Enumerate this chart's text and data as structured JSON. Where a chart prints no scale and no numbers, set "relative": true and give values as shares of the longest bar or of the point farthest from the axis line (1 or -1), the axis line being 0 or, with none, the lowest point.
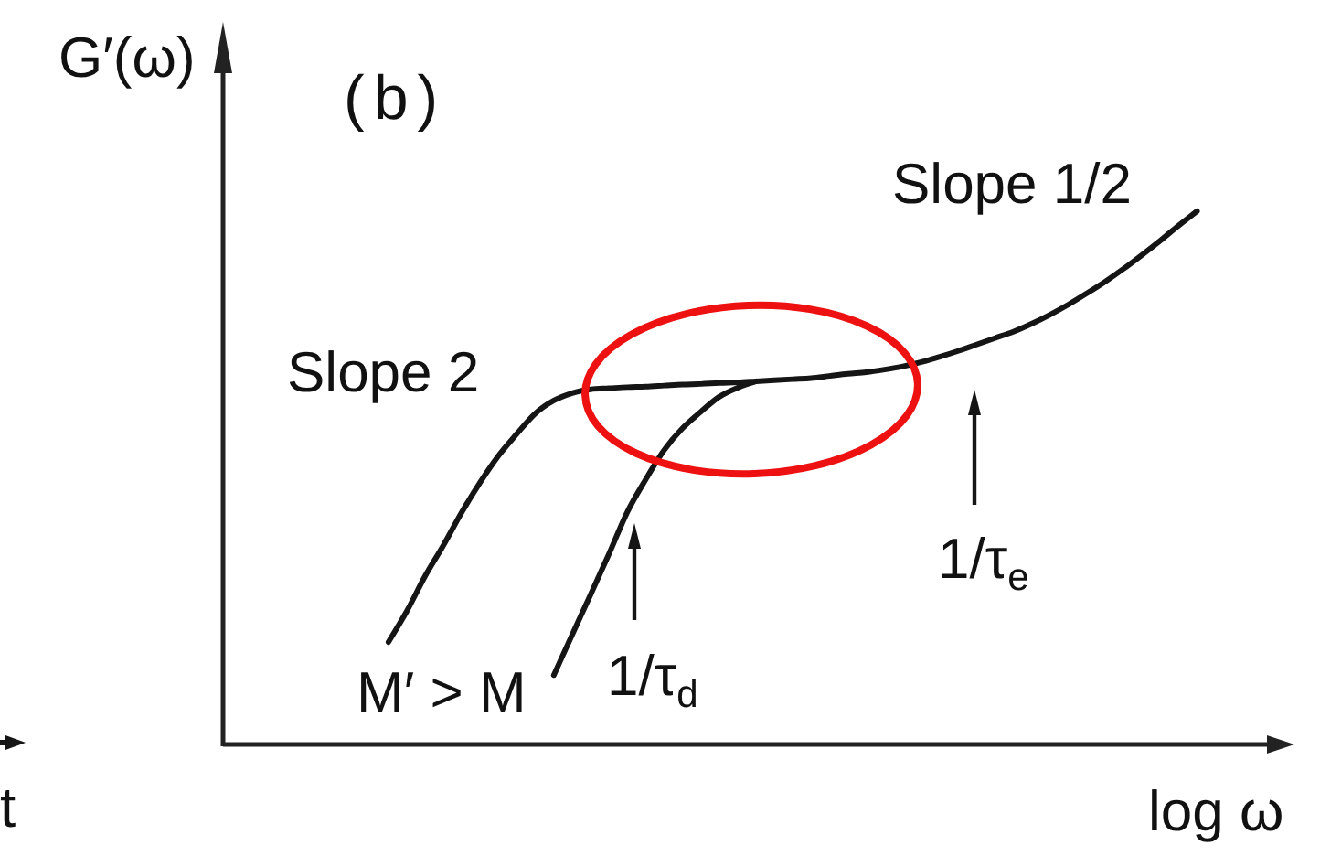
{
  "chart_data": {
    "type": "line",
    "title": "(b)",
    "xlabel": "log ω",
    "ylabel": "G′(ω)",
    "relative": true,
    "categories": [
      null,
      null,
      null,
      null,
      null,
      null,
      null,
      null,
      null,
      null,
      null,
      null,
      null,
      null,
      null,
      null,
      null,
      null,
      null,
      null,
      null,
      null,
      null,
      null,
      null,
      null,
      null,
      null,
      null,
      null,
      null,
      null,
      null,
      null,
      null,
      null,
      null,
      null,
      null,
      null,
      null,
      null,
      null,
      null,
      null,
      null,
      null,
      null,
      null,
      null,
      null,
      null,
      null,
      null,
      null,
      null,
      null,
      null,
      null
    ],
    "series": [
      {
        "color": "#151515",
        "values": [
          null,
          null,
          null,
          null,
          null,
          null,
          null,
          null,
          null,
          0.192,
          0.25,
          0.316,
          0.374,
          0.436,
          0.492,
          0.542,
          0.583,
          0.621,
          0.645,
          0.659,
          0.666,
          0.668,
          0.67,
          0.671,
          0.673,
          0.675,
          0.676,
          0.678,
          0.679,
          0.681,
          0.683,
          0.685,
          0.687,
          0.691,
          0.695,
          0.698,
          0.703,
          0.709,
          0.717,
          0.727,
          0.738,
          0.75,
          0.762,
          0.774,
          0.789,
          0.806,
          0.825,
          0.846,
          0.868,
          0.892,
          0.918,
          0.945,
          0.973,
          1,
          null,
          null,
          null,
          null,
          null
        ]
      },
      {
        "color": "#151515",
        "values": [
          null,
          null,
          null,
          null,
          null,
          null,
          null,
          null,
          null,
          null,
          null,
          null,
          null,
          null,
          null,
          null,
          null,
          null,
          0.13,
          0.206,
          0.281,
          0.357,
          0.436,
          0.497,
          0.552,
          0.593,
          0.624,
          0.652,
          0.669,
          0.681,
          null,
          null,
          null,
          null,
          null,
          null,
          null,
          null,
          null,
          null,
          null,
          null,
          null,
          null,
          null,
          null,
          null,
          null,
          null,
          null,
          null,
          null,
          null,
          null,
          null,
          null,
          null,
          null,
          null
        ]
      }
    ],
    "annotations": [
      "Slope 2",
      "Slope 1/2",
      "M′ > M",
      "1/τ$_{d}$",
      "1/τ$_{e}$",
      "t"
    ]
  }
}
